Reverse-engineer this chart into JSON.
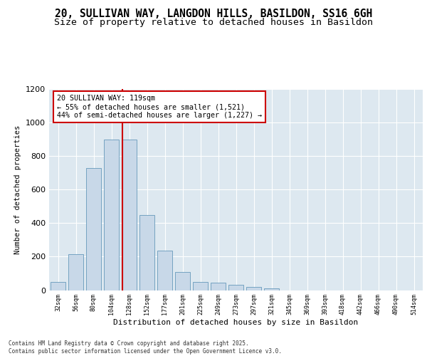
{
  "title_line1": "20, SULLIVAN WAY, LANGDON HILLS, BASILDON, SS16 6GH",
  "title_line2": "Size of property relative to detached houses in Basildon",
  "xlabel": "Distribution of detached houses by size in Basildon",
  "ylabel": "Number of detached properties",
  "categories": [
    "32sqm",
    "56sqm",
    "80sqm",
    "104sqm",
    "128sqm",
    "152sqm",
    "177sqm",
    "201sqm",
    "225sqm",
    "249sqm",
    "273sqm",
    "297sqm",
    "321sqm",
    "345sqm",
    "369sqm",
    "393sqm",
    "418sqm",
    "442sqm",
    "466sqm",
    "490sqm",
    "514sqm"
  ],
  "values": [
    50,
    215,
    730,
    900,
    900,
    450,
    235,
    110,
    50,
    45,
    30,
    20,
    10,
    0,
    0,
    0,
    0,
    0,
    0,
    0,
    0
  ],
  "bar_color": "#c8d8e8",
  "bar_edge_color": "#6699bb",
  "annotation_text": "20 SULLIVAN WAY: 119sqm\n← 55% of detached houses are smaller (1,521)\n44% of semi-detached houses are larger (1,227) →",
  "annotation_box_color": "#ffffff",
  "annotation_box_edge": "#cc0000",
  "red_line_color": "#cc0000",
  "ylim": [
    0,
    1200
  ],
  "yticks": [
    0,
    200,
    400,
    600,
    800,
    1000,
    1200
  ],
  "bg_color": "#dde8f0",
  "fig_bg_color": "#ffffff",
  "footnote": "Contains HM Land Registry data © Crown copyright and database right 2025.\nContains public sector information licensed under the Open Government Licence v3.0.",
  "title_fontsize": 10.5,
  "subtitle_fontsize": 9.5,
  "red_line_index": 3.62
}
